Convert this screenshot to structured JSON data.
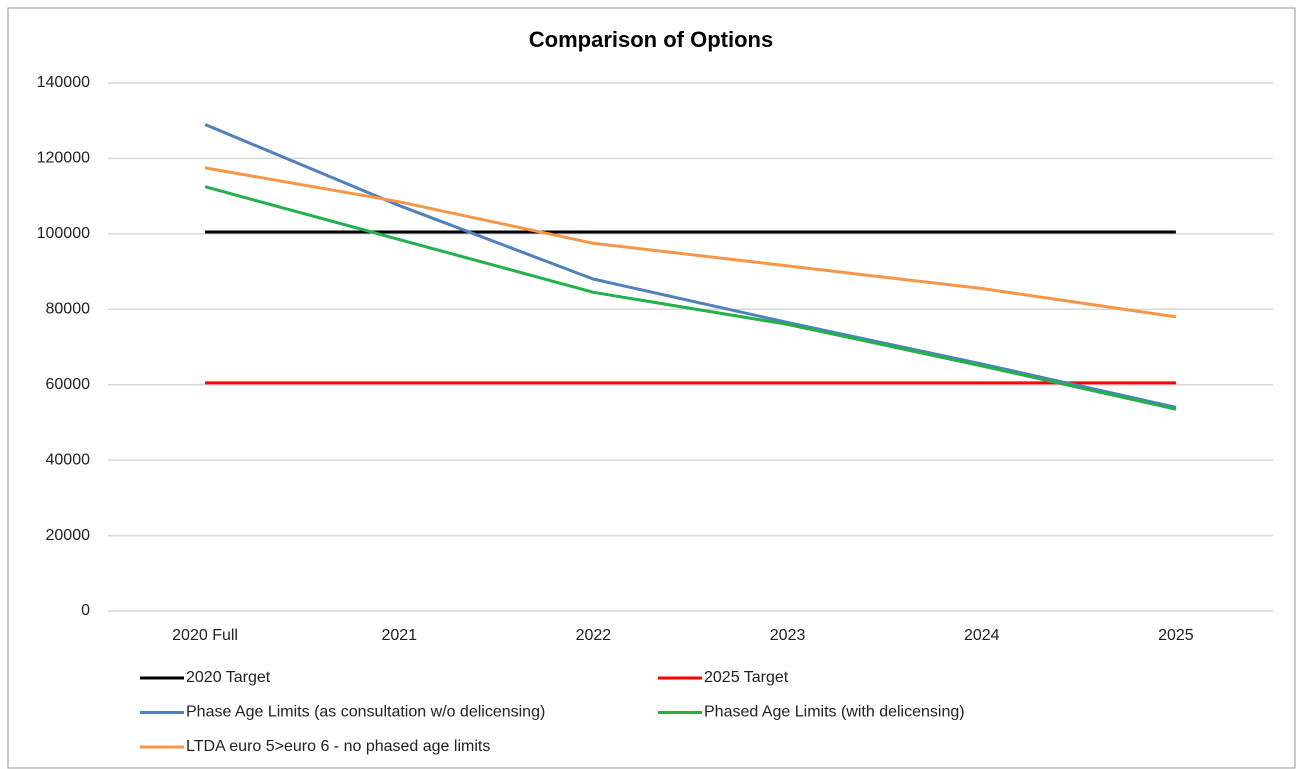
{
  "chart_data": {
    "type": "line",
    "title": "Comparison of Options",
    "categories": [
      "2020 Full",
      "2021",
      "2022",
      "2023",
      "2024",
      "2025"
    ],
    "series": [
      {
        "name": "2020 Target",
        "color": "#000000",
        "values": [
          100500,
          100500,
          100500,
          100500,
          100500,
          100500
        ]
      },
      {
        "name": "2025 Target",
        "color": "#ff0000",
        "values": [
          60500,
          60500,
          60500,
          60500,
          60500,
          60500
        ]
      },
      {
        "name": "Phase Age Limits (as consultation w/o delicensing)",
        "color": "#4f81bd",
        "values": [
          129000,
          107500,
          88000,
          76500,
          65500,
          54000
        ]
      },
      {
        "name": "Phased Age Limits (with delicensing)",
        "color": "#22b14c",
        "values": [
          112500,
          98500,
          84500,
          76000,
          65000,
          53500
        ]
      },
      {
        "name": "LTDA euro 5>euro 6 - no phased age limits",
        "color": "#f79646",
        "values": [
          117500,
          108500,
          97500,
          91500,
          85500,
          78000
        ]
      }
    ],
    "ylim": [
      0,
      140000
    ],
    "yticks": [
      0,
      20000,
      40000,
      60000,
      80000,
      100000,
      120000,
      140000
    ],
    "grid": true,
    "legend": "bottom"
  }
}
